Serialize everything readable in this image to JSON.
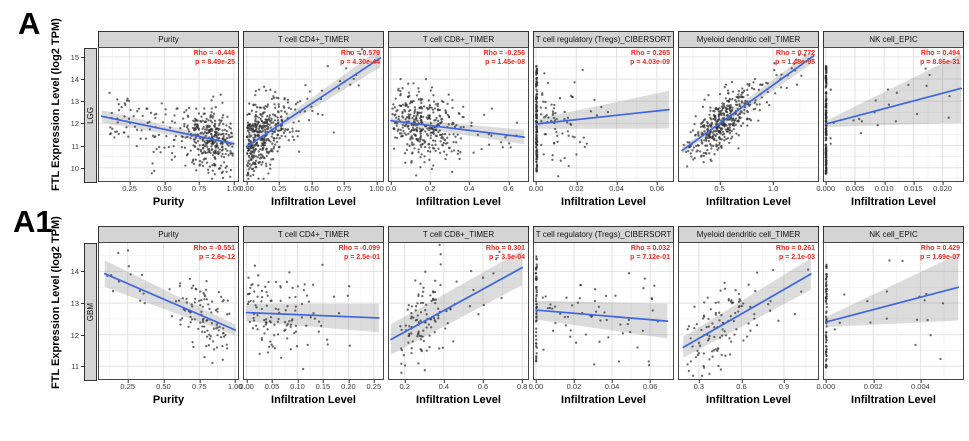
{
  "figure": {
    "label_a": "A",
    "label_a1": "A1"
  },
  "chart_data": {
    "type": "scatter",
    "ylabel": "FTL Expression Level (log2 TPM)",
    "colors": {
      "annotation_red": "#ee2a1f",
      "trend_blue": "#3e66e0",
      "ci_band_gray": "#808080",
      "point_gray": "#303030",
      "strip_gray": "#d4d4d4",
      "grid_major": "#e4e4e4",
      "grid_minor": "#f1f1f1"
    },
    "rows": [
      {
        "name": "LGG",
        "ylim": [
          9.4,
          15.4
        ],
        "yticks": [
          10,
          11,
          12,
          13,
          14,
          15
        ],
        "panels": [
          {
            "title": "Purity",
            "xlabel": "Purity",
            "rho": "Rho = -0.446",
            "p": "p = 8.49e-25",
            "xlim": [
              0.03,
              1.03
            ],
            "xticks": [
              0.25,
              0.5,
              0.75,
              1.0
            ],
            "xtick_labels": [
              "0.25",
              "0.50",
              "0.75",
              "1.00"
            ],
            "trend": {
              "x": [
                0.05,
                1.0
              ],
              "y": [
                12.32,
                11.08
              ]
            },
            "band": {
              "w1": 0.28,
              "w2": 0.1
            },
            "seed": 11,
            "scatter": [
              {
                "kind": "normal",
                "n": 330,
                "x_mean": 0.83,
                "x_sd": 0.09,
                "x_min": 0.55,
                "x_max": 1.0,
                "y_sd": 0.72
              },
              {
                "kind": "uniform",
                "n": 80,
                "x_min": 0.1,
                "x_max": 0.6,
                "y_sd": 0.72
              }
            ]
          },
          {
            "title": "T cell CD4+_TIMER",
            "xlabel": "Infiltration Level",
            "rho": "Rho = 0.579",
            "p": "p = 4.30e-44",
            "xlim": [
              -0.02,
              1.05
            ],
            "xticks": [
              0,
              0.25,
              0.5,
              0.75,
              1.0
            ],
            "xtick_labels": [
              "0.00",
              "0.25",
              "0.50",
              "0.75",
              "1.00"
            ],
            "trend": {
              "x": [
                0.0,
                1.03
              ],
              "y": [
                10.95,
                14.95
              ]
            },
            "band": {
              "w1": 0.1,
              "w2": 0.42
            },
            "seed": 12,
            "scatter": [
              {
                "kind": "halfnormal",
                "n": 400,
                "x_sd": 0.16,
                "x_min": 0.004,
                "x_max": 1.0,
                "y_sd": 0.78
              },
              {
                "kind": "uniform",
                "n": 28,
                "x_min": 0.35,
                "x_max": 0.9,
                "y_sd": 0.7
              }
            ]
          },
          {
            "title": "T cell CD8+_TIMER",
            "xlabel": "Infiltration Level",
            "rho": "Rho = -0.256",
            "p": "p = 1.45e-08",
            "xlim": [
              -0.01,
              0.7
            ],
            "xticks": [
              0,
              0.2,
              0.4,
              0.6
            ],
            "xtick_labels": [
              "0.0",
              "0.2",
              "0.4",
              "0.6"
            ],
            "trend": {
              "x": [
                0.0,
                0.68
              ],
              "y": [
                12.12,
                11.38
              ]
            },
            "band": {
              "w1": 0.12,
              "w2": 0.33
            },
            "seed": 13,
            "scatter": [
              {
                "kind": "normal",
                "n": 360,
                "x_mean": 0.15,
                "x_sd": 0.1,
                "x_min": 0.005,
                "x_max": 0.68,
                "y_sd": 0.8
              },
              {
                "kind": "uniform",
                "n": 24,
                "x_min": 0.3,
                "x_max": 0.66,
                "y_sd": 0.8
              }
            ]
          },
          {
            "title": "T cell regulatory (Tregs)_CIBERSORT",
            "xlabel": "Infiltration Level",
            "rho": "Rho = 0.265",
            "p": "p = 4.03e-09",
            "xlim": [
              -0.001,
              0.068
            ],
            "xticks": [
              0,
              0.02,
              0.04,
              0.06
            ],
            "xtick_labels": [
              "0.00",
              "0.02",
              "0.04",
              "0.06"
            ],
            "trend": {
              "x": [
                0.0,
                0.066
              ],
              "y": [
                11.97,
                12.62
              ]
            },
            "band": {
              "w1": 0.22,
              "w2": 0.85
            },
            "seed": 14,
            "scatter": [
              {
                "kind": "spike",
                "n": 150,
                "x_min": 0.0,
                "x_max": 0.0006,
                "y_min": 9.8,
                "y_max": 14.6
              },
              {
                "kind": "halfnormal",
                "n": 70,
                "x_sd": 0.012,
                "x_min": 0.0015,
                "x_max": 0.064,
                "y_sd": 1.0
              }
            ]
          },
          {
            "title": "Myeloid dendritic cell_TIMER",
            "xlabel": "Infiltration Level",
            "rho": "Rho = 0.772",
            "p": "p = 1.48e-95",
            "xlim": [
              0.12,
              1.42
            ],
            "xticks": [
              0.5,
              1.0
            ],
            "xtick_labels": [
              "0.5",
              "1.0"
            ],
            "trend": {
              "x": [
                0.15,
                1.38
              ],
              "y": [
                10.78,
                15.05
              ]
            },
            "band": {
              "w1": 0.14,
              "w2": 0.3
            },
            "seed": 15,
            "scatter": [
              {
                "kind": "normal",
                "n": 400,
                "x_mean": 0.52,
                "x_sd": 0.16,
                "x_min": 0.16,
                "x_max": 1.05,
                "y_sd": 0.58
              },
              {
                "kind": "uniform",
                "n": 26,
                "x_min": 0.85,
                "x_max": 1.35,
                "y_sd": 0.6
              }
            ]
          },
          {
            "title": "NK cell_EPIC",
            "xlabel": "Infiltration Level",
            "rho": "Rho = 0.494",
            "p": "p = 8.86e-31",
            "xlim": [
              -0.0003,
              0.0235
            ],
            "xticks": [
              0,
              0.005,
              0.01,
              0.015,
              0.02
            ],
            "xtick_labels": [
              "0.000",
              "0.005",
              "0.010",
              "0.015",
              "0.020"
            ],
            "trend": {
              "x": [
                0.0,
                0.0232
              ],
              "y": [
                11.97,
                13.58
              ]
            },
            "band": {
              "w1": 0.14,
              "w2": 1.55
            },
            "seed": 16,
            "scatter": [
              {
                "kind": "spike",
                "n": 190,
                "x_min": 0.0,
                "x_max": 0.00012,
                "y_min": 9.7,
                "y_max": 14.6
              },
              {
                "kind": "uniform",
                "n": 22,
                "x_min": 0.0008,
                "x_max": 0.022,
                "y_sd": 0.9
              }
            ]
          }
        ]
      },
      {
        "name": "GBM",
        "ylim": [
          10.6,
          14.9
        ],
        "yticks": [
          11,
          12,
          13,
          14
        ],
        "panels": [
          {
            "title": "Purity",
            "xlabel": "Purity",
            "rho": "Rho = -0.551",
            "p": "p = 2.6e-12",
            "xlim": [
              0.05,
              1.02
            ],
            "xticks": [
              0.25,
              0.5,
              0.75,
              1.0
            ],
            "xtick_labels": [
              "0.25",
              "0.50",
              "0.75",
              "1.00"
            ],
            "trend": {
              "x": [
                0.09,
                1.0
              ],
              "y": [
                13.93,
                12.15
              ]
            },
            "band": {
              "w1": 0.42,
              "w2": 0.17
            },
            "seed": 21,
            "scatter": [
              {
                "kind": "normal",
                "n": 105,
                "x_mean": 0.78,
                "x_sd": 0.11,
                "x_min": 0.42,
                "x_max": 0.99,
                "y_sd": 0.55
              },
              {
                "kind": "uniform",
                "n": 13,
                "x_min": 0.1,
                "x_max": 0.4,
                "y_sd": 0.6
              }
            ]
          },
          {
            "title": "T cell CD4+_TIMER",
            "xlabel": "Infiltration Level",
            "rho": "Rho = -0.099",
            "p": "p = 2.5e-01",
            "xlim": [
              -0.005,
              0.268
            ],
            "xticks": [
              0,
              0.05,
              0.1,
              0.15,
              0.2,
              0.25
            ],
            "xtick_labels": [
              "0.00",
              "0.05",
              "0.10",
              "0.15",
              "0.20",
              "0.25"
            ],
            "trend": {
              "x": [
                0.0,
                0.26
              ],
              "y": [
                12.7,
                12.53
              ]
            },
            "band": {
              "w1": 0.28,
              "w2": 0.45
            },
            "seed": 22,
            "scatter": [
              {
                "kind": "halfnormal",
                "n": 120,
                "x_sd": 0.08,
                "x_min": 0.001,
                "x_max": 0.26,
                "y_sd": 0.72
              }
            ]
          },
          {
            "title": "T cell CD8+_TIMER",
            "xlabel": "Infiltration Level",
            "rho": "Rho = 0.301",
            "p": "p = 3.5e-04",
            "xlim": [
              0.12,
              0.83
            ],
            "xticks": [
              0.2,
              0.4,
              0.6,
              0.8
            ],
            "xtick_labels": [
              "0.2",
              "0.4",
              "0.6",
              "0.8"
            ],
            "trend": {
              "x": [
                0.13,
                0.8
              ],
              "y": [
                11.85,
                14.12
              ]
            },
            "band": {
              "w1": 0.48,
              "w2": 0.55
            },
            "seed": 23,
            "scatter": [
              {
                "kind": "normal",
                "n": 112,
                "x_mean": 0.3,
                "x_sd": 0.08,
                "x_min": 0.14,
                "x_max": 0.62,
                "y_sd": 0.68
              },
              {
                "kind": "uniform",
                "n": 8,
                "x_min": 0.5,
                "x_max": 0.79,
                "y_sd": 0.7
              }
            ]
          },
          {
            "title": "T cell regulatory (Tregs)_CIBERSORT",
            "xlabel": "Infiltration Level",
            "rho": "Rho = 0.032",
            "p": "p = 7.12e-01",
            "xlim": [
              -0.001,
              0.072
            ],
            "xticks": [
              0,
              0.02,
              0.04,
              0.06
            ],
            "xtick_labels": [
              "0.00",
              "0.02",
              "0.04",
              "0.06"
            ],
            "trend": {
              "x": [
                0.0,
                0.069
              ],
              "y": [
                12.78,
                12.43
              ]
            },
            "band": {
              "w1": 0.3,
              "w2": 0.55
            },
            "seed": 24,
            "scatter": [
              {
                "kind": "spike",
                "n": 55,
                "x_min": 0.0,
                "x_max": 0.0005,
                "y_min": 11.1,
                "y_max": 14.5
              },
              {
                "kind": "uniform",
                "n": 58,
                "x_min": 0.003,
                "x_max": 0.066,
                "y_sd": 0.78
              }
            ]
          },
          {
            "title": "Myeloid dendritic cell_TIMER",
            "xlabel": "Infiltration Level",
            "rho": "Rho = 0.261",
            "p": "p = 2.1e-03",
            "xlim": [
              0.16,
              1.14
            ],
            "xticks": [
              0.3,
              0.6,
              0.9
            ],
            "xtick_labels": [
              "0.3",
              "0.6",
              "0.9"
            ],
            "trend": {
              "x": [
                0.19,
                1.09
              ],
              "y": [
                11.6,
                13.92
              ]
            },
            "band": {
              "w1": 0.33,
              "w2": 0.5
            },
            "seed": 25,
            "scatter": [
              {
                "kind": "normal",
                "n": 105,
                "x_mean": 0.43,
                "x_sd": 0.13,
                "x_min": 0.19,
                "x_max": 0.85,
                "y_sd": 0.58
              },
              {
                "kind": "uniform",
                "n": 9,
                "x_min": 0.65,
                "x_max": 1.08,
                "y_sd": 0.6
              }
            ]
          },
          {
            "title": "NK cell_EPIC",
            "xlabel": "Infiltration Level",
            "rho": "Rho = 0.429",
            "p": "p = 1.69e-07",
            "xlim": [
              -8e-05,
              0.0058
            ],
            "xticks": [
              0,
              0.002,
              0.004
            ],
            "xtick_labels": [
              "0.000",
              "0.002",
              "0.004"
            ],
            "trend": {
              "x": [
                0.0,
                0.0056
              ],
              "y": [
                12.4,
                13.5
              ]
            },
            "band": {
              "w1": 0.16,
              "w2": 1.05
            },
            "seed": 26,
            "scatter": [
              {
                "kind": "spike",
                "n": 70,
                "x_min": 0.0,
                "x_max": 4e-05,
                "y_min": 10.9,
                "y_max": 14.3
              },
              {
                "kind": "uniform",
                "n": 18,
                "x_min": 0.0002,
                "x_max": 0.0052,
                "y_sd": 0.8
              }
            ]
          }
        ]
      }
    ]
  }
}
